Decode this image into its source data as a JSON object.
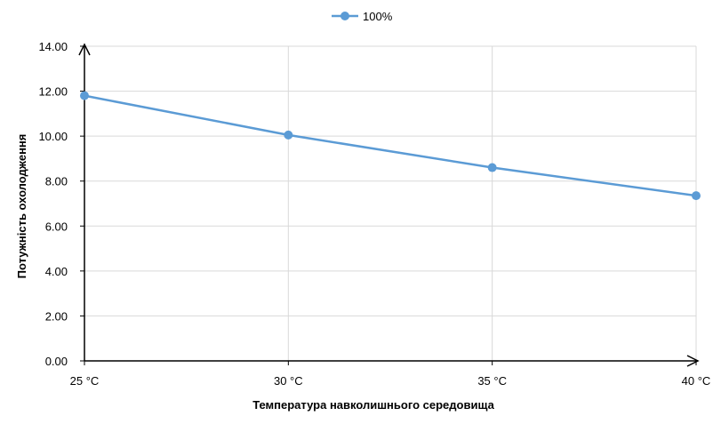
{
  "chart_data": {
    "type": "line",
    "title": "",
    "xlabel": "Температура навколишнього середовища",
    "ylabel": "Потужність охолодження",
    "categories": [
      "25 °C",
      "30 °C",
      "35 °C",
      "40 °C"
    ],
    "series": [
      {
        "name": "100%",
        "values": [
          11.8,
          10.05,
          8.6,
          7.35
        ],
        "color": "#5b9bd5"
      }
    ],
    "ylim": [
      0,
      14
    ],
    "y_ticks": [
      "0.00",
      "2.00",
      "4.00",
      "6.00",
      "8.00",
      "10.00",
      "12.00",
      "14.00"
    ],
    "grid": true,
    "legend_position": "top-center",
    "axis_color": "#000000",
    "grid_color": "#d9d9d9"
  }
}
